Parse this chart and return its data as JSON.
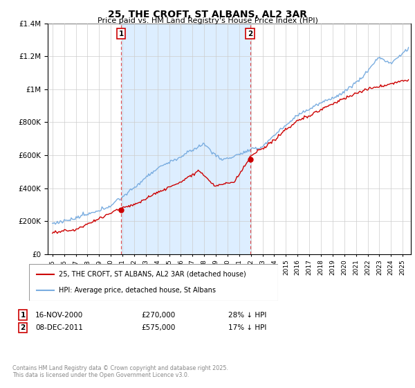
{
  "title": "25, THE CROFT, ST ALBANS, AL2 3AR",
  "subtitle": "Price paid vs. HM Land Registry's House Price Index (HPI)",
  "legend_label_red": "25, THE CROFT, ST ALBANS, AL2 3AR (detached house)",
  "legend_label_blue": "HPI: Average price, detached house, St Albans",
  "annotation1_label": "1",
  "annotation1_date": "16-NOV-2000",
  "annotation1_price": "£270,000",
  "annotation1_hpi": "28% ↓ HPI",
  "annotation1_year": 2000.88,
  "annotation1_value": 270000,
  "annotation2_label": "2",
  "annotation2_date": "08-DEC-2011",
  "annotation2_price": "£575,000",
  "annotation2_hpi": "17% ↓ HPI",
  "annotation2_year": 2011.93,
  "annotation2_value": 575000,
  "footer": "Contains HM Land Registry data © Crown copyright and database right 2025.\nThis data is licensed under the Open Government Licence v3.0.",
  "ylim": [
    0,
    1400000
  ],
  "yticks": [
    0,
    200000,
    400000,
    600000,
    800000,
    1000000,
    1200000,
    1400000
  ],
  "red_color": "#cc0000",
  "blue_color": "#7aade0",
  "shade_color": "#ddeeff",
  "annotation_line_color": "#dd4444",
  "background_color": "#ffffff",
  "grid_color": "#cccccc",
  "xstart": 1995,
  "xend": 2025
}
